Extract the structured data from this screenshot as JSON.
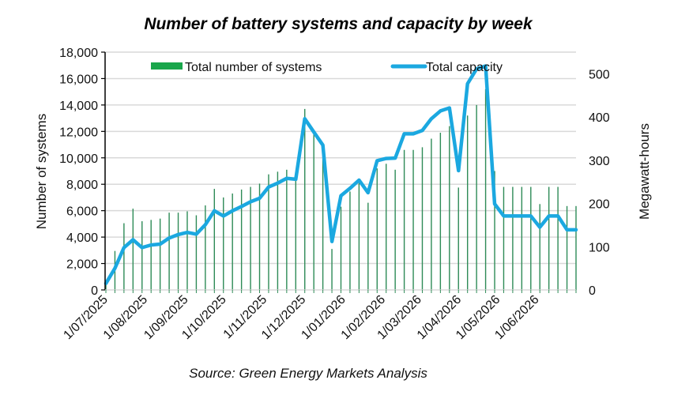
{
  "chart_data": {
    "type": "bar+line",
    "title": "Number of battery systems and capacity  by week",
    "source": "Source: Green Energy Markets Analysis",
    "ylabel": "Number of systems",
    "y2label": "Megawatt-hours",
    "ylim": [
      0,
      18000
    ],
    "y2lim": [
      0,
      550
    ],
    "yticks": [
      0,
      2000,
      4000,
      6000,
      8000,
      10000,
      12000,
      14000,
      16000,
      18000
    ],
    "ytick_labels": [
      "0",
      "2,000",
      "4,000",
      "6,000",
      "8,000",
      "10,000",
      "12,000",
      "14,000",
      "16,000",
      "18,000"
    ],
    "y2ticks": [
      0,
      100,
      200,
      300,
      400,
      500
    ],
    "y2tick_labels": [
      "0",
      "100",
      "200",
      "300",
      "400",
      "500"
    ],
    "grid": true,
    "legend_position": "top-center",
    "x_tick_labels": [
      {
        "label": "1/07/2025",
        "week": 0
      },
      {
        "label": "1/08/2025",
        "week": 4.4
      },
      {
        "label": "1/09/2025",
        "week": 8.9
      },
      {
        "label": "1/10/2025",
        "week": 13.1
      },
      {
        "label": "1/11/2025",
        "week": 17.6
      },
      {
        "label": "1/12/2025",
        "week": 21.9
      },
      {
        "label": "1/01/2026",
        "week": 26.3
      },
      {
        "label": "1/02/2026",
        "week": 30.7
      },
      {
        "label": "1/03/2026",
        "week": 34.7
      },
      {
        "label": "1/04/2026",
        "week": 39.1
      },
      {
        "label": "1/05/2026",
        "week": 43.4
      },
      {
        "label": "1/06/2026",
        "week": 47.7
      }
    ],
    "series": [
      {
        "name": "Total number of systems",
        "type": "bar",
        "axis": "left",
        "color": "#1aa64b",
        "values": [
          600,
          2950,
          5050,
          6150,
          5200,
          5300,
          5400,
          5850,
          5850,
          5950,
          5650,
          6400,
          7650,
          7000,
          7300,
          7600,
          7800,
          8050,
          8750,
          8950,
          9100,
          8950,
          13700,
          11800,
          10500,
          3100,
          6300,
          7450,
          8100,
          6600,
          9200,
          9550,
          9100,
          10600,
          10600,
          10800,
          11450,
          11900,
          12400,
          7750,
          13200,
          14000,
          15200,
          9000,
          7800,
          7800,
          7800,
          7800,
          6500,
          7800,
          7800,
          6350,
          6350
        ]
      },
      {
        "name": "Total capacity",
        "type": "line",
        "axis": "right",
        "color": "#1ba8e0",
        "values": [
          15,
          50,
          98,
          116,
          98,
          104,
          106,
          120,
          128,
          133,
          129,
          151,
          183,
          171,
          183,
          193,
          204,
          212,
          238,
          247,
          258,
          256,
          396,
          365,
          335,
          112,
          218,
          235,
          254,
          225,
          299,
          304,
          305,
          361,
          361,
          369,
          396,
          414,
          421,
          276,
          477,
          511,
          518,
          199,
          171,
          171,
          171,
          171,
          145,
          171,
          171,
          139,
          139
        ]
      }
    ]
  }
}
